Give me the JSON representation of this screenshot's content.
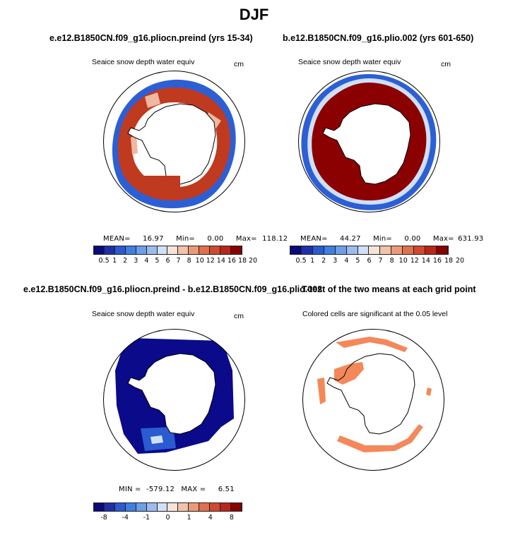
{
  "figure": {
    "title": "DJF",
    "colors": {
      "land": "#ffffff",
      "outline": "#000000",
      "seq_palette": [
        "#0a0a7a",
        "#1f2fa8",
        "#2a5bd0",
        "#3f7fe0",
        "#6d9ee8",
        "#9cbbee",
        "#cfe0f7",
        "#f7e3d8",
        "#f3c2aa",
        "#eb9a78",
        "#e0704e",
        "#d14a30",
        "#b8271b",
        "#8b0000"
      ],
      "sig_color": "#f4885a"
    }
  },
  "panels": [
    {
      "id": "top-left",
      "title": "e.e12.B1850CN.f09_g16.pliocn.preind (yrs 15-34)",
      "subtitle": "Seaice snow depth water equiv",
      "units": "cm",
      "stats": {
        "mean_label": "MEAN=",
        "mean": "16.97",
        "min_label": "Min=",
        "min": "0.00",
        "max_label": "Max=",
        "max": "118.12"
      },
      "colorbar_ticks": [
        "0.5",
        "1",
        "2",
        "3",
        "4",
        "5",
        "6",
        "7",
        "8",
        "10",
        "12",
        "14",
        "16",
        "18",
        "20"
      ]
    },
    {
      "id": "top-right",
      "title": "b.e12.B1850CN.f09_g16.plio.002 (yrs 601-650)",
      "subtitle": "Seaice snow depth water equiv",
      "units": "cm",
      "stats": {
        "mean_label": "MEAN=",
        "mean": "44.27",
        "min_label": "Min=",
        "min": "0.00",
        "max_label": "Max=",
        "max": "631.93"
      },
      "colorbar_ticks": [
        "0.5",
        "1",
        "2",
        "3",
        "4",
        "5",
        "6",
        "7",
        "8",
        "10",
        "12",
        "14",
        "16",
        "18",
        "20"
      ]
    },
    {
      "id": "bottom-left",
      "title": "e.e12.B1850CN.f09_g16.pliocn.preind - b.e12.B1850CN.f09_g16.plio.002",
      "subtitle": "Seaice snow depth water equiv",
      "units": "cm",
      "stats": {
        "min_label": "MIN =",
        "min": "-579.12",
        "max_label": "MAX =",
        "max": "6.51"
      },
      "colorbar_ticks": [
        "-8",
        "-4",
        "-1",
        "0",
        "1",
        "4",
        "8"
      ]
    },
    {
      "id": "bottom-right",
      "title": "T-test of the two means at each grid point",
      "subtitle": "Colored cells are significant at the 0.05 level"
    }
  ]
}
